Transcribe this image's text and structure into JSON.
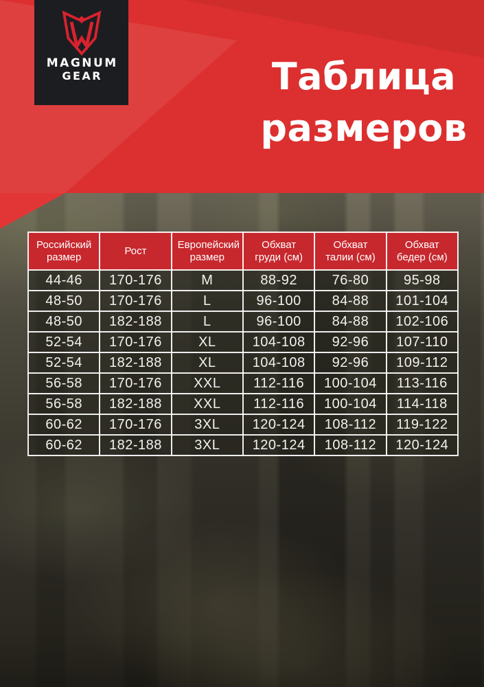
{
  "brand": {
    "logo_icon": "magnum-shield-m-icon",
    "name_line1": "MAGNUM",
    "name_line2": "GEAR"
  },
  "title": {
    "line1": "Таблица",
    "line2": "размеров"
  },
  "colors": {
    "hero_red": "#dc2f2f",
    "table_header_red": "#c7282e",
    "logo_red": "#d8232e",
    "logo_box_black": "#1c1d21",
    "text_white": "#ffffff",
    "table_cell_overlay": "rgba(33,32,26,0.55)"
  },
  "size_table": {
    "columns": [
      "Российский размер",
      "Рост",
      "Европейский размер",
      "Обхват груди (см)",
      "Обхват талии (см)",
      "Обхват бедер (см)"
    ],
    "rows": [
      [
        "44-46",
        "170-176",
        "M",
        "88-92",
        "76-80",
        "95-98"
      ],
      [
        "48-50",
        "170-176",
        "L",
        "96-100",
        "84-88",
        "101-104"
      ],
      [
        "48-50",
        "182-188",
        "L",
        "96-100",
        "84-88",
        "102-106"
      ],
      [
        "52-54",
        "170-176",
        "XL",
        "104-108",
        "92-96",
        "107-110"
      ],
      [
        "52-54",
        "182-188",
        "XL",
        "104-108",
        "92-96",
        "109-112"
      ],
      [
        "56-58",
        "170-176",
        "XXL",
        "112-116",
        "100-104",
        "113-116"
      ],
      [
        "56-58",
        "182-188",
        "XXL",
        "112-116",
        "100-104",
        "114-118"
      ],
      [
        "60-62",
        "170-176",
        "3XL",
        "120-124",
        "108-112",
        "119-122"
      ],
      [
        "60-62",
        "182-188",
        "3XL",
        "120-124",
        "108-112",
        "120-124"
      ]
    ]
  }
}
